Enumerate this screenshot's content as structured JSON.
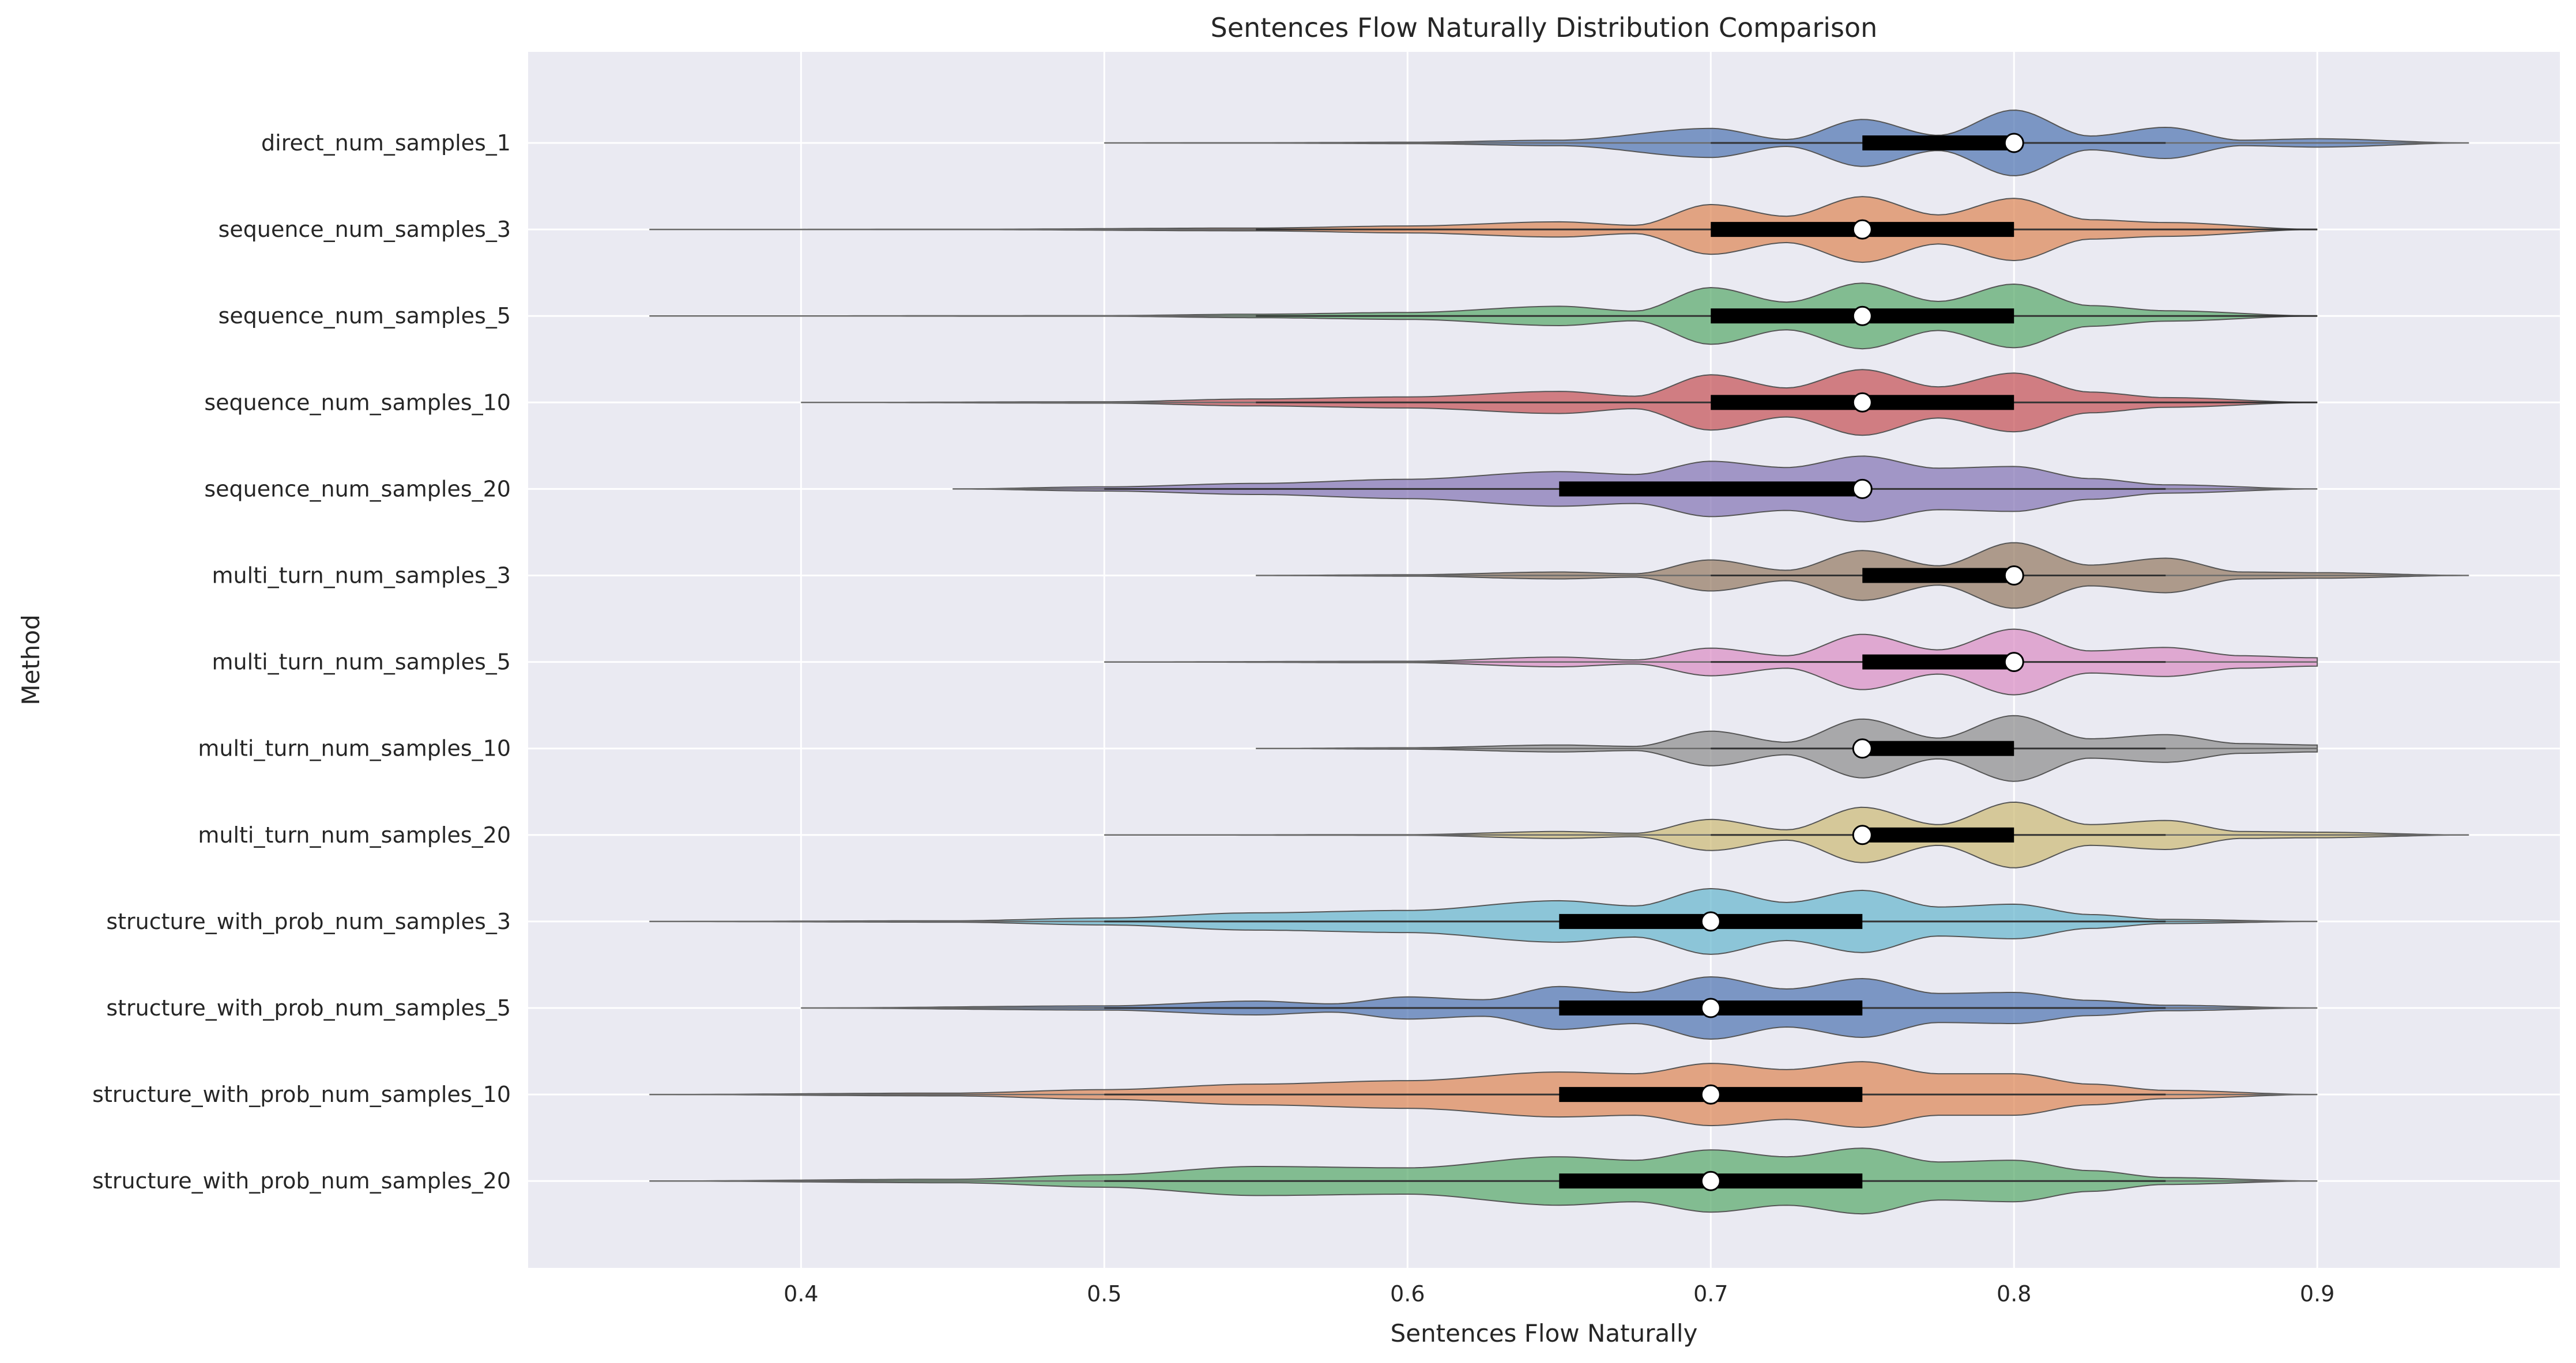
{
  "chart_data": {
    "type": "violin",
    "orientation": "horizontal",
    "title": "Sentences Flow Naturally Distribution Comparison",
    "xlabel": "Sentences Flow Naturally",
    "ylabel": "Method",
    "xlim": [
      0.31,
      0.98
    ],
    "xticks": [
      0.4,
      0.5,
      0.6,
      0.7,
      0.8,
      0.9
    ],
    "xtick_labels": [
      "0.4",
      "0.5",
      "0.6",
      "0.7",
      "0.8",
      "0.9"
    ],
    "grid": true,
    "colors": [
      "#4c72b0",
      "#dd8452",
      "#55a868",
      "#c44e52",
      "#8172b3",
      "#937860",
      "#da8bc3",
      "#8c8c8c",
      "#ccb974",
      "#64b5cd"
    ],
    "series": [
      {
        "name": "direct_num_samples_1",
        "min": 0.5,
        "max": 0.95,
        "whisker_low": 0.7,
        "whisker_high": 0.85,
        "q1": 0.75,
        "q3": 0.8,
        "median": 0.8,
        "density": [
          [
            0.5,
            0
          ],
          [
            0.55,
            0.005
          ],
          [
            0.6,
            0.02
          ],
          [
            0.65,
            0.08
          ],
          [
            0.7,
            0.42
          ],
          [
            0.725,
            0.1
          ],
          [
            0.75,
            0.68
          ],
          [
            0.775,
            0.22
          ],
          [
            0.8,
            0.95
          ],
          [
            0.825,
            0.2
          ],
          [
            0.85,
            0.45
          ],
          [
            0.875,
            0.08
          ],
          [
            0.9,
            0.12
          ],
          [
            0.95,
            0
          ]
        ]
      },
      {
        "name": "sequence_num_samples_3",
        "min": 0.35,
        "max": 0.9,
        "whisker_low": 0.55,
        "whisker_high": 0.9,
        "q1": 0.7,
        "q3": 0.8,
        "median": 0.75,
        "density": [
          [
            0.35,
            0
          ],
          [
            0.45,
            0.005
          ],
          [
            0.55,
            0.04
          ],
          [
            0.6,
            0.1
          ],
          [
            0.65,
            0.22
          ],
          [
            0.675,
            0.12
          ],
          [
            0.7,
            0.72
          ],
          [
            0.725,
            0.38
          ],
          [
            0.75,
            0.95
          ],
          [
            0.775,
            0.42
          ],
          [
            0.8,
            0.9
          ],
          [
            0.825,
            0.28
          ],
          [
            0.85,
            0.2
          ],
          [
            0.9,
            0
          ]
        ]
      },
      {
        "name": "sequence_num_samples_5",
        "min": 0.35,
        "max": 0.9,
        "whisker_low": 0.55,
        "whisker_high": 0.9,
        "q1": 0.7,
        "q3": 0.8,
        "median": 0.75,
        "density": [
          [
            0.35,
            0
          ],
          [
            0.5,
            0.01
          ],
          [
            0.55,
            0.05
          ],
          [
            0.6,
            0.1
          ],
          [
            0.65,
            0.28
          ],
          [
            0.675,
            0.14
          ],
          [
            0.7,
            0.82
          ],
          [
            0.725,
            0.4
          ],
          [
            0.75,
            0.95
          ],
          [
            0.775,
            0.42
          ],
          [
            0.8,
            0.92
          ],
          [
            0.825,
            0.3
          ],
          [
            0.85,
            0.15
          ],
          [
            0.9,
            0
          ]
        ]
      },
      {
        "name": "sequence_num_samples_10",
        "min": 0.4,
        "max": 0.9,
        "whisker_low": 0.55,
        "whisker_high": 0.9,
        "q1": 0.7,
        "q3": 0.8,
        "median": 0.75,
        "density": [
          [
            0.4,
            0
          ],
          [
            0.5,
            0.02
          ],
          [
            0.55,
            0.1
          ],
          [
            0.6,
            0.16
          ],
          [
            0.65,
            0.32
          ],
          [
            0.675,
            0.18
          ],
          [
            0.7,
            0.8
          ],
          [
            0.725,
            0.42
          ],
          [
            0.75,
            0.95
          ],
          [
            0.775,
            0.45
          ],
          [
            0.8,
            0.85
          ],
          [
            0.825,
            0.3
          ],
          [
            0.85,
            0.14
          ],
          [
            0.9,
            0
          ]
        ]
      },
      {
        "name": "sequence_num_samples_20",
        "min": 0.45,
        "max": 0.9,
        "whisker_low": 0.5,
        "whisker_high": 0.85,
        "q1": 0.65,
        "q3": 0.75,
        "median": 0.75,
        "density": [
          [
            0.45,
            0
          ],
          [
            0.5,
            0.06
          ],
          [
            0.55,
            0.16
          ],
          [
            0.6,
            0.28
          ],
          [
            0.65,
            0.5
          ],
          [
            0.675,
            0.42
          ],
          [
            0.7,
            0.8
          ],
          [
            0.725,
            0.62
          ],
          [
            0.75,
            0.95
          ],
          [
            0.775,
            0.6
          ],
          [
            0.8,
            0.65
          ],
          [
            0.825,
            0.3
          ],
          [
            0.85,
            0.12
          ],
          [
            0.9,
            0
          ]
        ]
      },
      {
        "name": "multi_turn_num_samples_3",
        "min": 0.55,
        "max": 0.95,
        "whisker_low": 0.7,
        "whisker_high": 0.85,
        "q1": 0.75,
        "q3": 0.8,
        "median": 0.8,
        "density": [
          [
            0.55,
            0
          ],
          [
            0.6,
            0.02
          ],
          [
            0.65,
            0.1
          ],
          [
            0.675,
            0.05
          ],
          [
            0.7,
            0.45
          ],
          [
            0.725,
            0.15
          ],
          [
            0.75,
            0.72
          ],
          [
            0.775,
            0.28
          ],
          [
            0.8,
            0.95
          ],
          [
            0.825,
            0.3
          ],
          [
            0.85,
            0.5
          ],
          [
            0.875,
            0.1
          ],
          [
            0.9,
            0.08
          ],
          [
            0.95,
            0
          ]
        ]
      },
      {
        "name": "multi_turn_num_samples_5",
        "min": 0.5,
        "max": 0.9,
        "whisker_low": 0.7,
        "whisker_high": 0.85,
        "q1": 0.75,
        "q3": 0.8,
        "median": 0.8,
        "density": [
          [
            0.5,
            0
          ],
          [
            0.6,
            0.02
          ],
          [
            0.65,
            0.14
          ],
          [
            0.675,
            0.06
          ],
          [
            0.7,
            0.4
          ],
          [
            0.725,
            0.18
          ],
          [
            0.75,
            0.8
          ],
          [
            0.775,
            0.35
          ],
          [
            0.8,
            0.95
          ],
          [
            0.825,
            0.32
          ],
          [
            0.85,
            0.42
          ],
          [
            0.875,
            0.18
          ],
          [
            0.9,
            0.12
          ]
        ]
      },
      {
        "name": "multi_turn_num_samples_10",
        "min": 0.55,
        "max": 0.9,
        "whisker_low": 0.7,
        "whisker_high": 0.85,
        "q1": 0.75,
        "q3": 0.8,
        "median": 0.75,
        "density": [
          [
            0.55,
            0
          ],
          [
            0.6,
            0.02
          ],
          [
            0.65,
            0.1
          ],
          [
            0.675,
            0.06
          ],
          [
            0.7,
            0.5
          ],
          [
            0.725,
            0.18
          ],
          [
            0.75,
            0.85
          ],
          [
            0.775,
            0.3
          ],
          [
            0.8,
            0.95
          ],
          [
            0.825,
            0.28
          ],
          [
            0.85,
            0.4
          ],
          [
            0.875,
            0.14
          ],
          [
            0.9,
            0.1
          ]
        ]
      },
      {
        "name": "multi_turn_num_samples_20",
        "min": 0.5,
        "max": 0.95,
        "whisker_low": 0.7,
        "whisker_high": 0.85,
        "q1": 0.75,
        "q3": 0.8,
        "median": 0.75,
        "density": [
          [
            0.5,
            0
          ],
          [
            0.6,
            0.01
          ],
          [
            0.65,
            0.1
          ],
          [
            0.675,
            0.05
          ],
          [
            0.7,
            0.45
          ],
          [
            0.725,
            0.15
          ],
          [
            0.75,
            0.8
          ],
          [
            0.775,
            0.3
          ],
          [
            0.8,
            0.95
          ],
          [
            0.825,
            0.3
          ],
          [
            0.85,
            0.42
          ],
          [
            0.875,
            0.1
          ],
          [
            0.9,
            0.08
          ],
          [
            0.95,
            0
          ]
        ]
      },
      {
        "name": "structure_with_prob_num_samples_3",
        "min": 0.35,
        "max": 0.9,
        "whisker_low": 0.5,
        "whisker_high": 0.85,
        "q1": 0.65,
        "q3": 0.75,
        "median": 0.7,
        "density": [
          [
            0.35,
            0
          ],
          [
            0.45,
            0.02
          ],
          [
            0.5,
            0.1
          ],
          [
            0.55,
            0.25
          ],
          [
            0.6,
            0.32
          ],
          [
            0.65,
            0.6
          ],
          [
            0.675,
            0.45
          ],
          [
            0.7,
            0.95
          ],
          [
            0.725,
            0.55
          ],
          [
            0.75,
            0.9
          ],
          [
            0.775,
            0.42
          ],
          [
            0.8,
            0.5
          ],
          [
            0.825,
            0.2
          ],
          [
            0.85,
            0.06
          ],
          [
            0.9,
            0
          ]
        ]
      },
      {
        "name": "structure_with_prob_num_samples_5",
        "min": 0.4,
        "max": 0.9,
        "whisker_low": 0.5,
        "whisker_high": 0.85,
        "q1": 0.65,
        "q3": 0.75,
        "median": 0.7,
        "density": [
          [
            0.4,
            0
          ],
          [
            0.5,
            0.06
          ],
          [
            0.55,
            0.2
          ],
          [
            0.575,
            0.12
          ],
          [
            0.6,
            0.32
          ],
          [
            0.625,
            0.24
          ],
          [
            0.65,
            0.62
          ],
          [
            0.675,
            0.45
          ],
          [
            0.7,
            0.9
          ],
          [
            0.725,
            0.55
          ],
          [
            0.75,
            0.85
          ],
          [
            0.775,
            0.42
          ],
          [
            0.8,
            0.45
          ],
          [
            0.825,
            0.22
          ],
          [
            0.85,
            0.08
          ],
          [
            0.9,
            0
          ]
        ]
      },
      {
        "name": "structure_with_prob_num_samples_10",
        "min": 0.35,
        "max": 0.9,
        "whisker_low": 0.5,
        "whisker_high": 0.85,
        "q1": 0.65,
        "q3": 0.75,
        "median": 0.7,
        "density": [
          [
            0.35,
            0
          ],
          [
            0.45,
            0.04
          ],
          [
            0.5,
            0.14
          ],
          [
            0.55,
            0.3
          ],
          [
            0.6,
            0.4
          ],
          [
            0.65,
            0.65
          ],
          [
            0.675,
            0.6
          ],
          [
            0.7,
            0.9
          ],
          [
            0.725,
            0.72
          ],
          [
            0.75,
            0.95
          ],
          [
            0.775,
            0.6
          ],
          [
            0.8,
            0.6
          ],
          [
            0.825,
            0.3
          ],
          [
            0.85,
            0.12
          ],
          [
            0.9,
            0
          ]
        ]
      },
      {
        "name": "structure_with_prob_num_samples_20",
        "min": 0.35,
        "max": 0.9,
        "whisker_low": 0.5,
        "whisker_high": 0.85,
        "q1": 0.65,
        "q3": 0.75,
        "median": 0.7,
        "density": [
          [
            0.35,
            0
          ],
          [
            0.45,
            0.05
          ],
          [
            0.5,
            0.18
          ],
          [
            0.55,
            0.42
          ],
          [
            0.6,
            0.38
          ],
          [
            0.65,
            0.7
          ],
          [
            0.675,
            0.6
          ],
          [
            0.7,
            0.9
          ],
          [
            0.725,
            0.7
          ],
          [
            0.75,
            0.95
          ],
          [
            0.775,
            0.55
          ],
          [
            0.8,
            0.6
          ],
          [
            0.825,
            0.3
          ],
          [
            0.85,
            0.1
          ],
          [
            0.9,
            0
          ]
        ]
      }
    ]
  }
}
